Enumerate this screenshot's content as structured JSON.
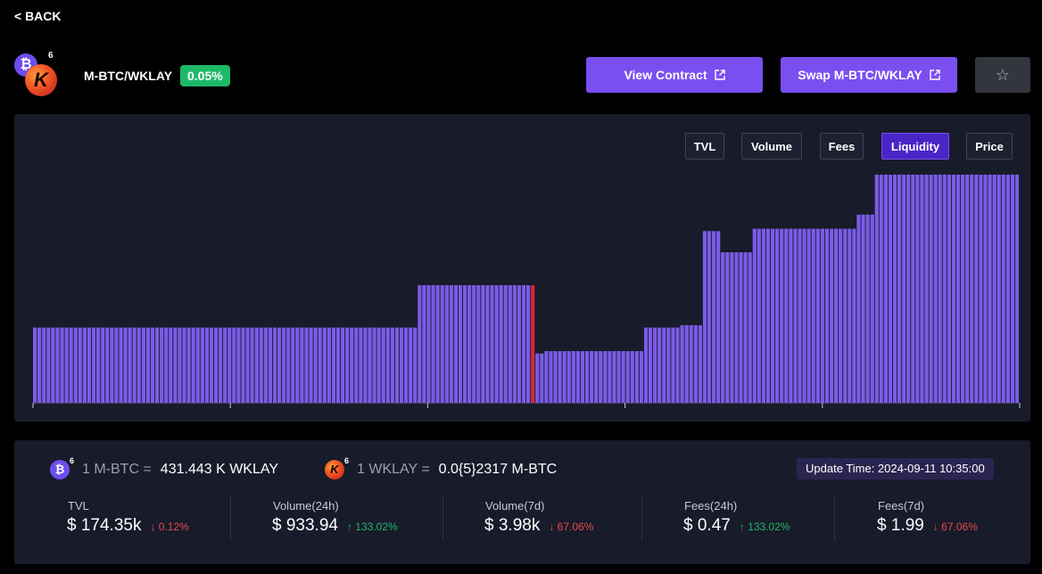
{
  "nav": {
    "back_label": "< BACK"
  },
  "pair": {
    "name": "M-BTC/WKLAY",
    "fee": "0.05%",
    "token0_symbol": "₿",
    "token1_symbol": "K",
    "superscript": "6"
  },
  "actions": {
    "view_contract": "View Contract",
    "swap": "Swap M-BTC/WKLAY",
    "star_icon": "star-icon",
    "external_icon": "external-link-icon"
  },
  "chart": {
    "tabs": [
      {
        "label": "TVL",
        "active": false
      },
      {
        "label": "Volume",
        "active": false
      },
      {
        "label": "Fees",
        "active": false
      },
      {
        "label": "Liquidity",
        "active": true
      },
      {
        "label": "Price",
        "active": false
      }
    ]
  },
  "chart_data": {
    "type": "bar",
    "title": "",
    "xlabel": "",
    "ylabel": "",
    "ylim": [
      0,
      100
    ],
    "bar_color": "#7b5ce8",
    "current_price_color": "#d62836",
    "current_bar_index": 110,
    "x_ticks": 6,
    "segments": [
      {
        "count": 85,
        "value": 32
      },
      {
        "count": 26,
        "value": 50
      },
      {
        "count": 2,
        "value": 21
      },
      {
        "count": 22,
        "value": 22
      },
      {
        "count": 8,
        "value": 32
      },
      {
        "count": 5,
        "value": 33
      },
      {
        "count": 4,
        "value": 73
      },
      {
        "count": 7,
        "value": 64
      },
      {
        "count": 23,
        "value": 74
      },
      {
        "count": 4,
        "value": 80
      },
      {
        "count": 32,
        "value": 97
      }
    ]
  },
  "rates": {
    "btc": {
      "lhs": "1 M-BTC =",
      "rhs": "431.443 K WKLAY"
    },
    "klay": {
      "lhs": "1 WKLAY =",
      "rhs": "0.0{5}2317 M-BTC"
    }
  },
  "update_time": "Update Time: 2024-09-11 10:35:00",
  "stats": [
    {
      "label": "TVL",
      "value": "$ 174.35k",
      "change": "↓ 0.12%",
      "direction": "down"
    },
    {
      "label": "Volume(24h)",
      "value": "$ 933.94",
      "change": "↑ 133.02%",
      "direction": "up"
    },
    {
      "label": "Volume(7d)",
      "value": "$ 3.98k",
      "change": "↓ 67.06%",
      "direction": "down"
    },
    {
      "label": "Fees(24h)",
      "value": "$ 0.47",
      "change": "↑ 133.02%",
      "direction": "up"
    },
    {
      "label": "Fees(7d)",
      "value": "$ 1.99",
      "change": "↓ 67.06%",
      "direction": "down"
    }
  ]
}
